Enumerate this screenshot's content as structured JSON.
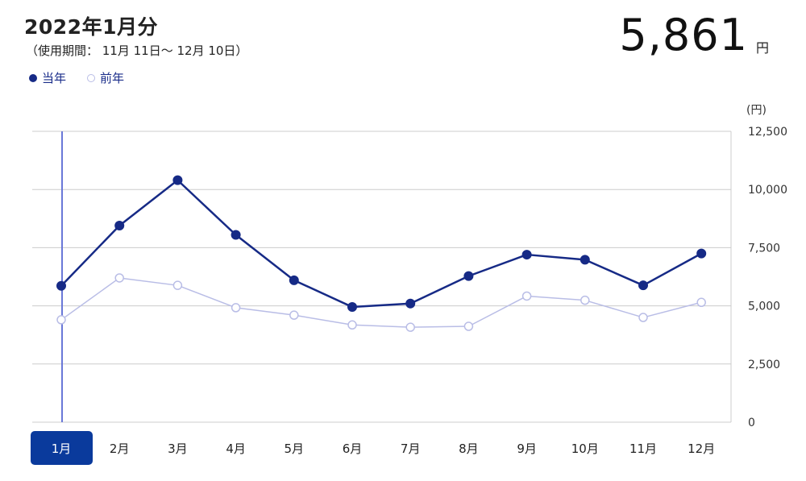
{
  "header": {
    "title": "2022年1月分",
    "period": "（使用期間： 11月 11日〜 12月 10日）",
    "total_value": "5,861",
    "total_unit": "円"
  },
  "legend": {
    "current_label": "当年",
    "previous_label": "前年"
  },
  "colors": {
    "current": "#162a86",
    "previous": "#b9bde6",
    "selected_bg": "#0a3a9c",
    "cursor": "#6a78d8",
    "grid": "#cccccc"
  },
  "chart_data": {
    "type": "line",
    "unit_label": "(円)",
    "categories": [
      "1月",
      "2月",
      "3月",
      "4月",
      "5月",
      "6月",
      "7月",
      "8月",
      "9月",
      "10月",
      "11月",
      "12月"
    ],
    "selected_index": 0,
    "ylim": [
      0,
      12500
    ],
    "yticks": [
      0,
      2500,
      5000,
      7500,
      10000,
      12500
    ],
    "ytick_labels": [
      "0",
      "2,500",
      "5,000",
      "7,500",
      "10,000",
      "12,500"
    ],
    "series": [
      {
        "name": "当年",
        "values": [
          5861,
          8450,
          10400,
          8050,
          6100,
          4950,
          5100,
          6280,
          7200,
          6980,
          5880,
          7250
        ]
      },
      {
        "name": "前年",
        "values": [
          4400,
          6200,
          5880,
          4920,
          4600,
          4180,
          4080,
          4120,
          5420,
          5240,
          4500,
          5150
        ]
      }
    ]
  }
}
